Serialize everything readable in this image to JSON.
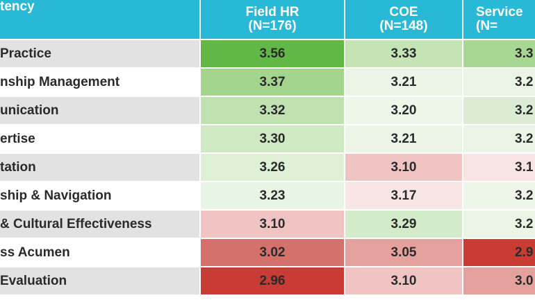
{
  "table": {
    "header_color": "#29b8d6",
    "stripe_colors": [
      "#e2e2e2",
      "#ffffff"
    ],
    "headers": [
      {
        "lines": [
          "tency"
        ]
      },
      {
        "lines": [
          "Field HR",
          "(N=176)"
        ]
      },
      {
        "lines": [
          "COE",
          "(N=148)"
        ]
      },
      {
        "lines": [
          "Service",
          "(N="
        ]
      }
    ],
    "rows": [
      {
        "label": "Practice",
        "cells": [
          {
            "text": "3.56",
            "color": "#62b845"
          },
          {
            "text": "3.33",
            "color": "#c4e4b6"
          },
          {
            "text": "3.3",
            "color": "#a8d793"
          }
        ]
      },
      {
        "label": "nship Management",
        "cells": [
          {
            "text": "3.37",
            "color": "#a4d58e"
          },
          {
            "text": "3.21",
            "color": "#ecf6e8"
          },
          {
            "text": "3.2",
            "color": "#eaf5e5"
          }
        ]
      },
      {
        "label": "unication",
        "cells": [
          {
            "text": "3.32",
            "color": "#bfe2b0"
          },
          {
            "text": "3.20",
            "color": "#eef6ea"
          },
          {
            "text": "3.2",
            "color": "#dcecd4"
          }
        ]
      },
      {
        "label": "ertise",
        "cells": [
          {
            "text": "3.30",
            "color": "#cfe9c3"
          },
          {
            "text": "3.21",
            "color": "#ecf6e8"
          },
          {
            "text": "3.2",
            "color": "#eaf5e5"
          }
        ]
      },
      {
        "label": "tation",
        "cells": [
          {
            "text": "3.26",
            "color": "#def0d6"
          },
          {
            "text": "3.10",
            "color": "#f0c4c3"
          },
          {
            "text": "3.1",
            "color": "#f9e4e4"
          }
        ]
      },
      {
        "label": "ship & Navigation",
        "cells": [
          {
            "text": "3.23",
            "color": "#e9f5e4"
          },
          {
            "text": "3.17",
            "color": "#f8e6e6"
          },
          {
            "text": "3.2",
            "color": "#eef6ea"
          }
        ]
      },
      {
        "label": "& Cultural Effectiveness",
        "cells": [
          {
            "text": "3.10",
            "color": "#f0c4c3"
          },
          {
            "text": "3.29",
            "color": "#d3ebc8"
          },
          {
            "text": "3.2",
            "color": "#eaf5e5"
          }
        ]
      },
      {
        "label": "ss Acumen",
        "cells": [
          {
            "text": "3.02",
            "color": "#d6706b"
          },
          {
            "text": "3.05",
            "color": "#e5a19d"
          },
          {
            "text": "2.9",
            "color": "#c83c33"
          }
        ]
      },
      {
        "label": "Evaluation",
        "cells": [
          {
            "text": "2.96",
            "color": "#c83c33"
          },
          {
            "text": "3.10",
            "color": "#f0c4c3"
          },
          {
            "text": "3.0",
            "color": "#e3a09c"
          }
        ]
      }
    ]
  }
}
